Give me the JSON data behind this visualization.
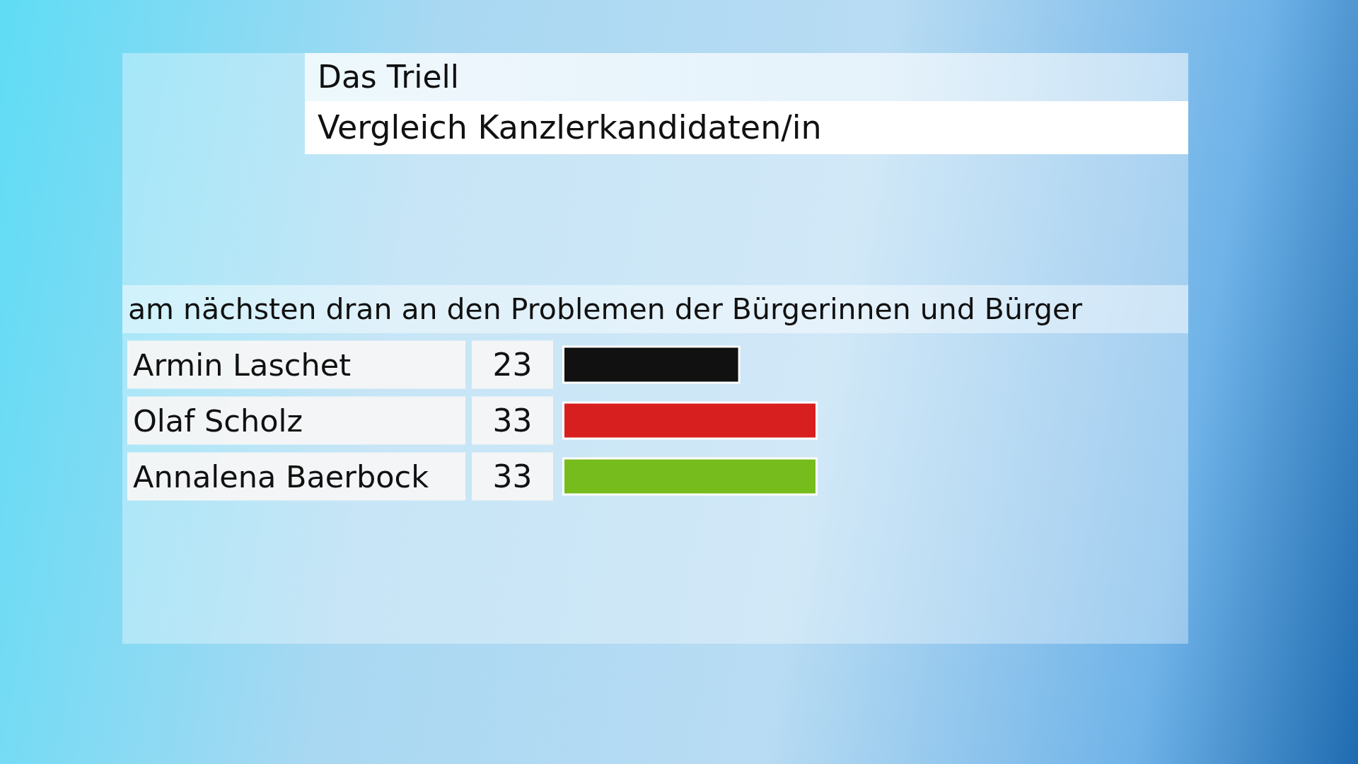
{
  "chart_data": {
    "type": "bar",
    "orientation": "horizontal",
    "title": "Das Triell",
    "subtitle": "Vergleich Kanzlerkandidaten/in",
    "annotations": [
      "am nächsten dran an den Problemen der Bürgerinnen und Bürger"
    ],
    "categories": [
      "Armin Laschet",
      "Olaf Scholz",
      "Annalena Baerbock"
    ],
    "values": [
      23,
      33,
      33
    ],
    "colors": [
      "#111111",
      "#d81f1f",
      "#76bc1c"
    ],
    "data_labels": true
  }
}
